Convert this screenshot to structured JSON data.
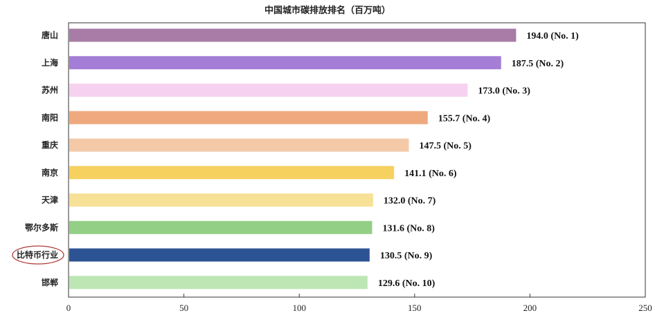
{
  "chart_data": {
    "type": "bar",
    "orientation": "horizontal",
    "title": "中国城市碳排放排名（百万吨）",
    "categories": [
      "唐山",
      "上海",
      "苏州",
      "南阳",
      "重庆",
      "南京",
      "天津",
      "鄂尔多斯",
      "比特币行业",
      "邯郸"
    ],
    "values": [
      194.0,
      187.5,
      173.0,
      155.7,
      147.5,
      141.1,
      132.0,
      131.6,
      130.5,
      129.6
    ],
    "data_labels": [
      "194.0 (No. 1)",
      "187.5 (No. 2)",
      "173.0 (No. 3)",
      "155.7 (No. 4)",
      "147.5 (No. 5)",
      "141.1 (No. 6)",
      "132.0 (No. 7)",
      "131.6 (No. 8)",
      "130.5 (No. 9)",
      "129.6 (No. 10)"
    ],
    "colors": [
      "#a87ca6",
      "#a47ed6",
      "#f6d2f0",
      "#eeaa7e",
      "#f3c9a8",
      "#f6d160",
      "#f7e196",
      "#94cf86",
      "#2c5394",
      "#bde6b4"
    ],
    "highlighted_category": "比特币行业",
    "highlight_color": "#b03a3a",
    "xlim": [
      0,
      250
    ],
    "x_ticks": [
      0,
      50,
      100,
      150,
      200,
      250
    ],
    "x_tick_labels": [
      "0",
      "50",
      "100",
      "150",
      "200",
      "250"
    ],
    "xlabel": "",
    "ylabel": "",
    "grid": false,
    "legend": "none"
  }
}
